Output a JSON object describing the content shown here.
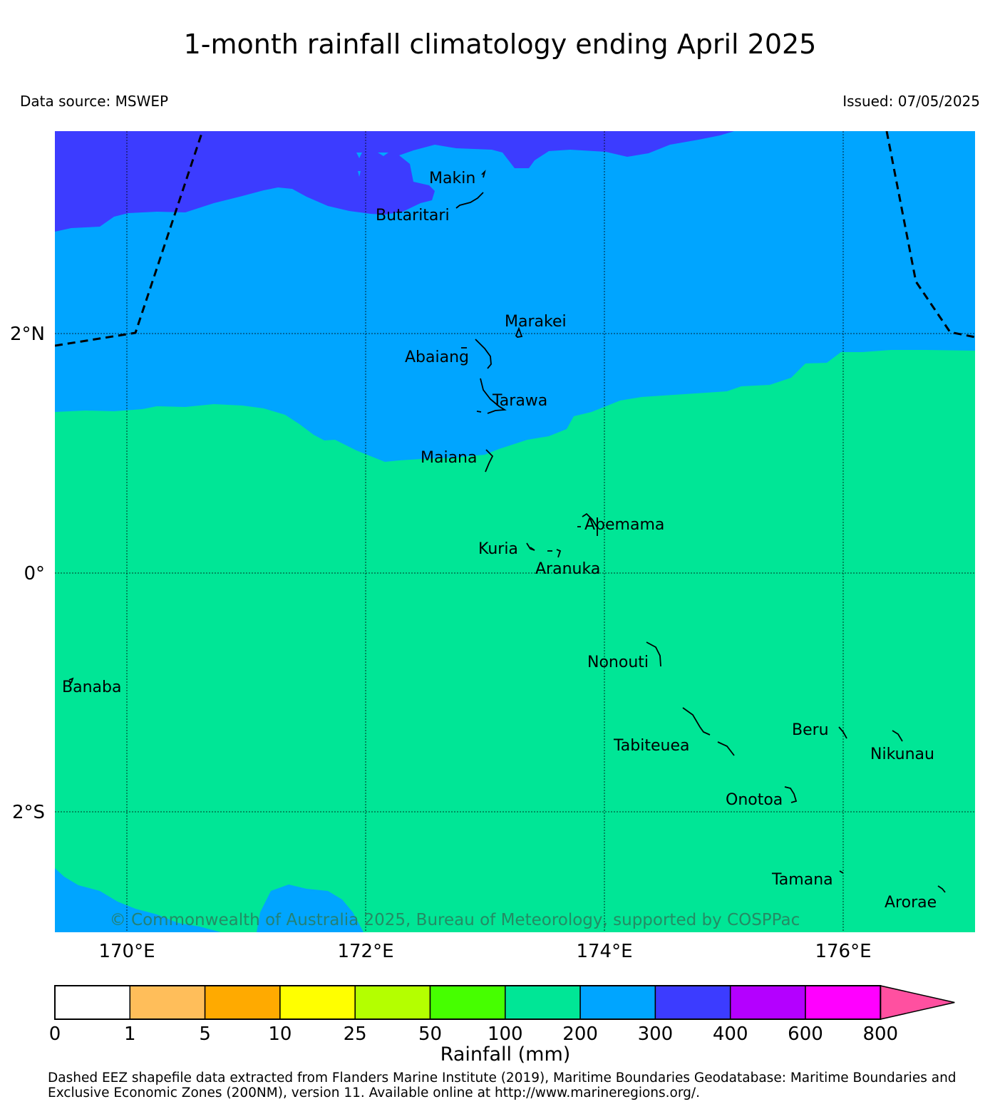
{
  "title": "1-month rainfall climatology ending April 2025",
  "data_source": "Data source: MSWEP",
  "issued": "Issued: 07/05/2025",
  "copyright": "© Commonwealth of Australia 2025, Bureau of Meteorology, supported by COSPPac",
  "footnote_line1": "Dashed EEZ shapefile data extracted from Flanders Marine Institute (2019), Maritime Boundaries Geodatabase: Maritime Boundaries and",
  "footnote_line2": "Exclusive Economic Zones (200NM), version 11. Available online at http://www.marineregions.org/.",
  "map": {
    "lat_labels": [
      "2°N",
      "0°",
      "2°S"
    ],
    "lon_labels": [
      "170°E",
      "172°E",
      "174°E",
      "176°E"
    ],
    "islands": [
      {
        "name": "Makin"
      },
      {
        "name": "Butaritari"
      },
      {
        "name": "Marakei"
      },
      {
        "name": "Abaiang"
      },
      {
        "name": "Tarawa"
      },
      {
        "name": "Maiana"
      },
      {
        "name": "Abemama"
      },
      {
        "name": "Kuria"
      },
      {
        "name": "Aranuka"
      },
      {
        "name": "Nonouti"
      },
      {
        "name": "Banaba"
      },
      {
        "name": "Tabiteuea"
      },
      {
        "name": "Beru"
      },
      {
        "name": "Nikunau"
      },
      {
        "name": "Onotoa"
      },
      {
        "name": "Tamana"
      },
      {
        "name": "Arorae"
      }
    ],
    "colors": {
      "300_400": "#3c3cff",
      "200_300": "#00a5ff",
      "100_200": "#00e696"
    }
  },
  "colorbar": {
    "label": "Rainfall (mm)",
    "ticks": [
      "0",
      "1",
      "5",
      "10",
      "25",
      "50",
      "100",
      "200",
      "300",
      "400",
      "600",
      "800"
    ],
    "colors": [
      "#ffffff",
      "#ffbe5a",
      "#ffaa00",
      "#ffff00",
      "#b4ff00",
      "#46ff00",
      "#00e696",
      "#00a5ff",
      "#3c3cff",
      "#b400ff",
      "#ff00ff"
    ],
    "extend_color": "#ff50a0"
  }
}
